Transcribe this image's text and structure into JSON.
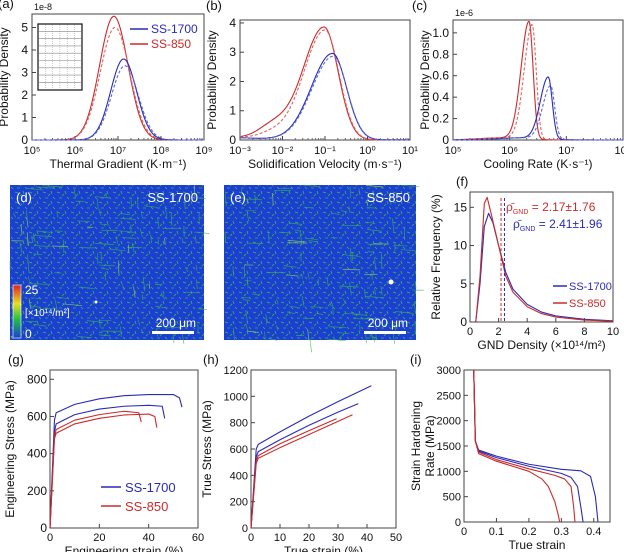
{
  "colors": {
    "ss1700": "#2a2ab8",
    "ss850": "#cc2a2a",
    "ss1700_light": "#5a6ad8",
    "ss850_light": "#e06060",
    "axis": "#222222",
    "map_bg": "#1a3fd0",
    "map_fg": "#3fc040"
  },
  "legend": {
    "ss1700": "SS-1700",
    "ss850": "SS-850"
  },
  "panels": {
    "a": {
      "label": "(a)",
      "multiplier": "1e-8",
      "xlabel": "Thermal Gradient (K·m⁻¹)",
      "ylabel": "Probability Density",
      "yticks": [
        "0",
        "1",
        "2",
        "3",
        "4",
        "5"
      ],
      "xticks": [
        "10⁵",
        "10⁶",
        "10⁷",
        "10⁸",
        "10⁹"
      ]
    },
    "b": {
      "label": "(b)",
      "xlabel": "Solidification Velocity (m·s⁻¹)",
      "ylabel": "Probability Density",
      "yticks": [
        "0",
        "1",
        "2",
        "3",
        "4"
      ],
      "xticks": [
        "10⁻³",
        "10⁻²",
        "10⁻¹",
        "10⁰",
        "10¹"
      ]
    },
    "c": {
      "label": "(c)",
      "multiplier": "1e-6",
      "xlabel": "Cooling Rate (K·s⁻¹)",
      "ylabel": "Probability Density",
      "yticks": [
        "0",
        "0.2",
        "0.4",
        "0.6",
        "0.8",
        "1.0"
      ],
      "xticks": [
        "10⁵",
        "10⁶",
        "10⁷",
        "10⁸"
      ]
    },
    "d": {
      "label": "(d)",
      "sample": "SS-1700",
      "scalebar": "200 μm",
      "cbar_max": "25",
      "cbar_min": "0",
      "cbar_unit": "[×10¹⁴/m²]"
    },
    "e": {
      "label": "(e)",
      "sample": "SS-850",
      "scalebar": "200 μm"
    },
    "f": {
      "label": "(f)",
      "xlabel": "GND Density (×10¹⁴/m²)",
      "ylabel": "Relative Frequency (%)",
      "yticks": [
        "0",
        "5",
        "10",
        "15"
      ],
      "xticks": [
        "0",
        "2",
        "4",
        "6",
        "8",
        "10"
      ],
      "ann_850": "ρ̄GND = 2.17±1.76",
      "ann_1700": "ρ̄GND = 2.41±1.96",
      "ann_850_value": "= 2.17±1.76",
      "ann_1700_value": "= 2.41±1.96",
      "rho": "ρ̄",
      "sub": "GND"
    },
    "g": {
      "label": "(g)",
      "xlabel": "Engineering strain (%)",
      "ylabel": "Engineering Stress (MPa)",
      "yticks": [
        "0",
        "200",
        "400",
        "600",
        "800"
      ],
      "xticks": [
        "0",
        "20",
        "40",
        "60"
      ]
    },
    "h": {
      "label": "(h)",
      "xlabel": "True strain (%)",
      "ylabel": "True Stress (MPa)",
      "yticks": [
        "0",
        "200",
        "400",
        "600",
        "800",
        "1000",
        "1200"
      ],
      "xticks": [
        "0",
        "10",
        "20",
        "30",
        "40",
        "50"
      ]
    },
    "i": {
      "label": "(i)",
      "xlabel": "True strain",
      "ylabel1": "Strain Hardening",
      "ylabel2": "Rate (MPa)",
      "yticks": [
        "0",
        "500",
        "1000",
        "1500",
        "2000",
        "2500",
        "3000"
      ],
      "xticks": [
        "0",
        "0.1",
        "0.2",
        "0.3",
        "0.4"
      ]
    }
  },
  "chart_data": [
    {
      "id": "a",
      "type": "line",
      "xscale": "log",
      "title": "",
      "xlabel": "Thermal Gradient (K·m⁻¹)",
      "ylabel": "Probability Density (×1e-8)",
      "xlim": [
        100000.0,
        1000000000.0
      ],
      "ylim": [
        0,
        5.6
      ],
      "series": [
        {
          "name": "SS-850",
          "style": "solid",
          "peak_x": 8000000.0,
          "peak_y": 5.5,
          "sigma_log10": 0.33
        },
        {
          "name": "SS-850",
          "style": "dashed",
          "peak_x": 8500000.0,
          "peak_y": 5.0,
          "sigma_log10": 0.34
        },
        {
          "name": "SS-1700",
          "style": "solid",
          "peak_x": 13500000.0,
          "peak_y": 3.6,
          "sigma_log10": 0.3
        },
        {
          "name": "SS-1700",
          "style": "dashed",
          "peak_x": 14500000.0,
          "peak_y": 3.3,
          "sigma_log10": 0.31
        }
      ],
      "legend": "top-right"
    },
    {
      "id": "b",
      "type": "line",
      "xscale": "log",
      "xlabel": "Solidification Velocity (m·s⁻¹)",
      "ylabel": "Probability Density",
      "xlim": [
        0.001,
        10
      ],
      "ylim": [
        0,
        4.1
      ],
      "series": [
        {
          "name": "SS-850",
          "style": "solid",
          "peak_x": 0.095,
          "peak_y": 3.85,
          "shoulder_x": 0.006,
          "shoulder_y": 0.45
        },
        {
          "name": "SS-850",
          "style": "dashed",
          "peak_x": 0.1,
          "peak_y": 3.75,
          "shoulder_x": 0.006,
          "shoulder_y": 0.2
        },
        {
          "name": "SS-1700",
          "style": "solid",
          "peak_x": 0.15,
          "peak_y": 2.95
        },
        {
          "name": "SS-1700",
          "style": "dashed",
          "peak_x": 0.155,
          "peak_y": 2.85
        }
      ]
    },
    {
      "id": "c",
      "type": "line",
      "xscale": "log",
      "xlabel": "Cooling Rate (K·s⁻¹)",
      "ylabel": "Probability Density (×1e-6)",
      "xlim": [
        100000.0,
        100000000.0
      ],
      "ylim": [
        0,
        1.12
      ],
      "series": [
        {
          "name": "SS-850",
          "style": "solid",
          "peak_x": 2200000.0,
          "peak_y": 1.1
        },
        {
          "name": "SS-850",
          "style": "dashed",
          "peak_x": 2500000.0,
          "peak_y": 1.07
        },
        {
          "name": "SS-1700",
          "style": "solid",
          "peak_x": 4800000.0,
          "peak_y": 0.58
        },
        {
          "name": "SS-1700",
          "style": "dashed",
          "peak_x": 5300000.0,
          "peak_y": 0.5
        }
      ]
    },
    {
      "id": "f",
      "type": "line",
      "xlabel": "GND Density (×10¹⁴/m²)",
      "ylabel": "Relative Frequency (%)",
      "xlim": [
        0,
        10
      ],
      "ylim": [
        0,
        17
      ],
      "series": [
        {
          "name": "SS-1700",
          "x": [
            0.4,
            0.7,
            1.0,
            1.3,
            1.6,
            2.0,
            2.5,
            3.0,
            4.0,
            5.0,
            6.0,
            8.0,
            10.0
          ],
          "y": [
            0,
            5,
            12.5,
            14.2,
            13,
            10,
            6.5,
            4.3,
            2.3,
            1.3,
            0.8,
            0.35,
            0.15
          ],
          "mean": 2.41,
          "std": 1.96
        },
        {
          "name": "SS-850",
          "x": [
            0.4,
            0.7,
            1.0,
            1.2,
            1.5,
            2.0,
            2.5,
            3.0,
            4.0,
            5.0,
            6.0,
            8.0,
            10.0
          ],
          "y": [
            0,
            6,
            15.5,
            16.3,
            14,
            10,
            6,
            3.9,
            2.0,
            1.1,
            0.65,
            0.25,
            0.1
          ],
          "mean": 2.17,
          "std": 1.76
        }
      ],
      "vlines": [
        {
          "name": "SS-850 mean",
          "x": 2.17
        },
        {
          "name": "SS-1700 mean",
          "x": 2.41
        }
      ],
      "legend": "bottom-right"
    },
    {
      "id": "g",
      "type": "line",
      "xlabel": "Engineering strain (%)",
      "ylabel": "Engineering Stress (MPa)",
      "xlim": [
        0,
        60
      ],
      "ylim": [
        0,
        850
      ],
      "series": [
        {
          "name": "SS-1700",
          "x": [
            0,
            1.8,
            2.5,
            10,
            20,
            30,
            40,
            50,
            52.5,
            53.5
          ],
          "y": [
            0,
            580,
            620,
            665,
            695,
            712,
            718,
            718,
            700,
            650
          ]
        },
        {
          "name": "SS-1700",
          "x": [
            0,
            1.8,
            2.5,
            10,
            20,
            30,
            40,
            45.5,
            46.5
          ],
          "y": [
            0,
            520,
            560,
            610,
            640,
            655,
            660,
            655,
            590
          ]
        },
        {
          "name": "SS-850",
          "x": [
            0,
            1.8,
            2.5,
            10,
            20,
            30,
            36,
            37
          ],
          "y": [
            0,
            490,
            530,
            580,
            610,
            628,
            620,
            570
          ]
        },
        {
          "name": "SS-850",
          "x": [
            0,
            1.8,
            2.5,
            10,
            20,
            30,
            40,
            42.5,
            43.3
          ],
          "y": [
            0,
            480,
            510,
            560,
            590,
            608,
            613,
            600,
            540
          ]
        }
      ],
      "legend": "bottom-right"
    },
    {
      "id": "h",
      "type": "line",
      "xlabel": "True strain (%)",
      "ylabel": "True Stress (MPa)",
      "xlim": [
        0,
        50
      ],
      "ylim": [
        0,
        1200
      ],
      "series": [
        {
          "name": "SS-1700",
          "x": [
            0,
            1.8,
            2.5,
            10,
            20,
            30,
            41.5
          ],
          "y": [
            0,
            600,
            635,
            730,
            850,
            960,
            1080
          ]
        },
        {
          "name": "SS-1700",
          "x": [
            0,
            1.8,
            2.5,
            10,
            20,
            30,
            37
          ],
          "y": [
            0,
            540,
            580,
            670,
            780,
            880,
            945
          ]
        },
        {
          "name": "SS-850",
          "x": [
            0,
            1.8,
            2.5,
            10,
            20,
            29.5
          ],
          "y": [
            0,
            510,
            550,
            640,
            740,
            830
          ]
        },
        {
          "name": "SS-850",
          "x": [
            0,
            1.8,
            2.5,
            10,
            20,
            30,
            35
          ],
          "y": [
            0,
            490,
            530,
            610,
            710,
            810,
            860
          ]
        }
      ]
    },
    {
      "id": "i",
      "type": "line",
      "xlabel": "True strain",
      "ylabel": "Strain Hardening Rate (MPa)",
      "xlim": [
        0,
        0.45
      ],
      "ylim": [
        0,
        3000
      ],
      "series": [
        {
          "name": "SS-1700",
          "x": [
            0.03,
            0.035,
            0.045,
            0.1,
            0.2,
            0.3,
            0.36,
            0.39,
            0.405,
            0.413
          ],
          "y": [
            3000,
            1600,
            1420,
            1300,
            1140,
            1040,
            1010,
            900,
            500,
            0
          ]
        },
        {
          "name": "SS-1700",
          "x": [
            0.03,
            0.035,
            0.045,
            0.1,
            0.2,
            0.3,
            0.33,
            0.35,
            0.36,
            0.367
          ],
          "y": [
            3000,
            1600,
            1400,
            1270,
            1100,
            960,
            880,
            700,
            300,
            0
          ]
        },
        {
          "name": "SS-850",
          "x": [
            0.03,
            0.035,
            0.045,
            0.1,
            0.2,
            0.28,
            0.31,
            0.33,
            0.338,
            0.342
          ],
          "y": [
            3000,
            1600,
            1380,
            1230,
            1050,
            920,
            850,
            700,
            300,
            0
          ]
        },
        {
          "name": "SS-850",
          "x": [
            0.03,
            0.035,
            0.045,
            0.1,
            0.2,
            0.24,
            0.26,
            0.28,
            0.29,
            0.295
          ],
          "y": [
            3000,
            1600,
            1350,
            1200,
            1000,
            850,
            700,
            400,
            150,
            0
          ]
        }
      ]
    }
  ]
}
